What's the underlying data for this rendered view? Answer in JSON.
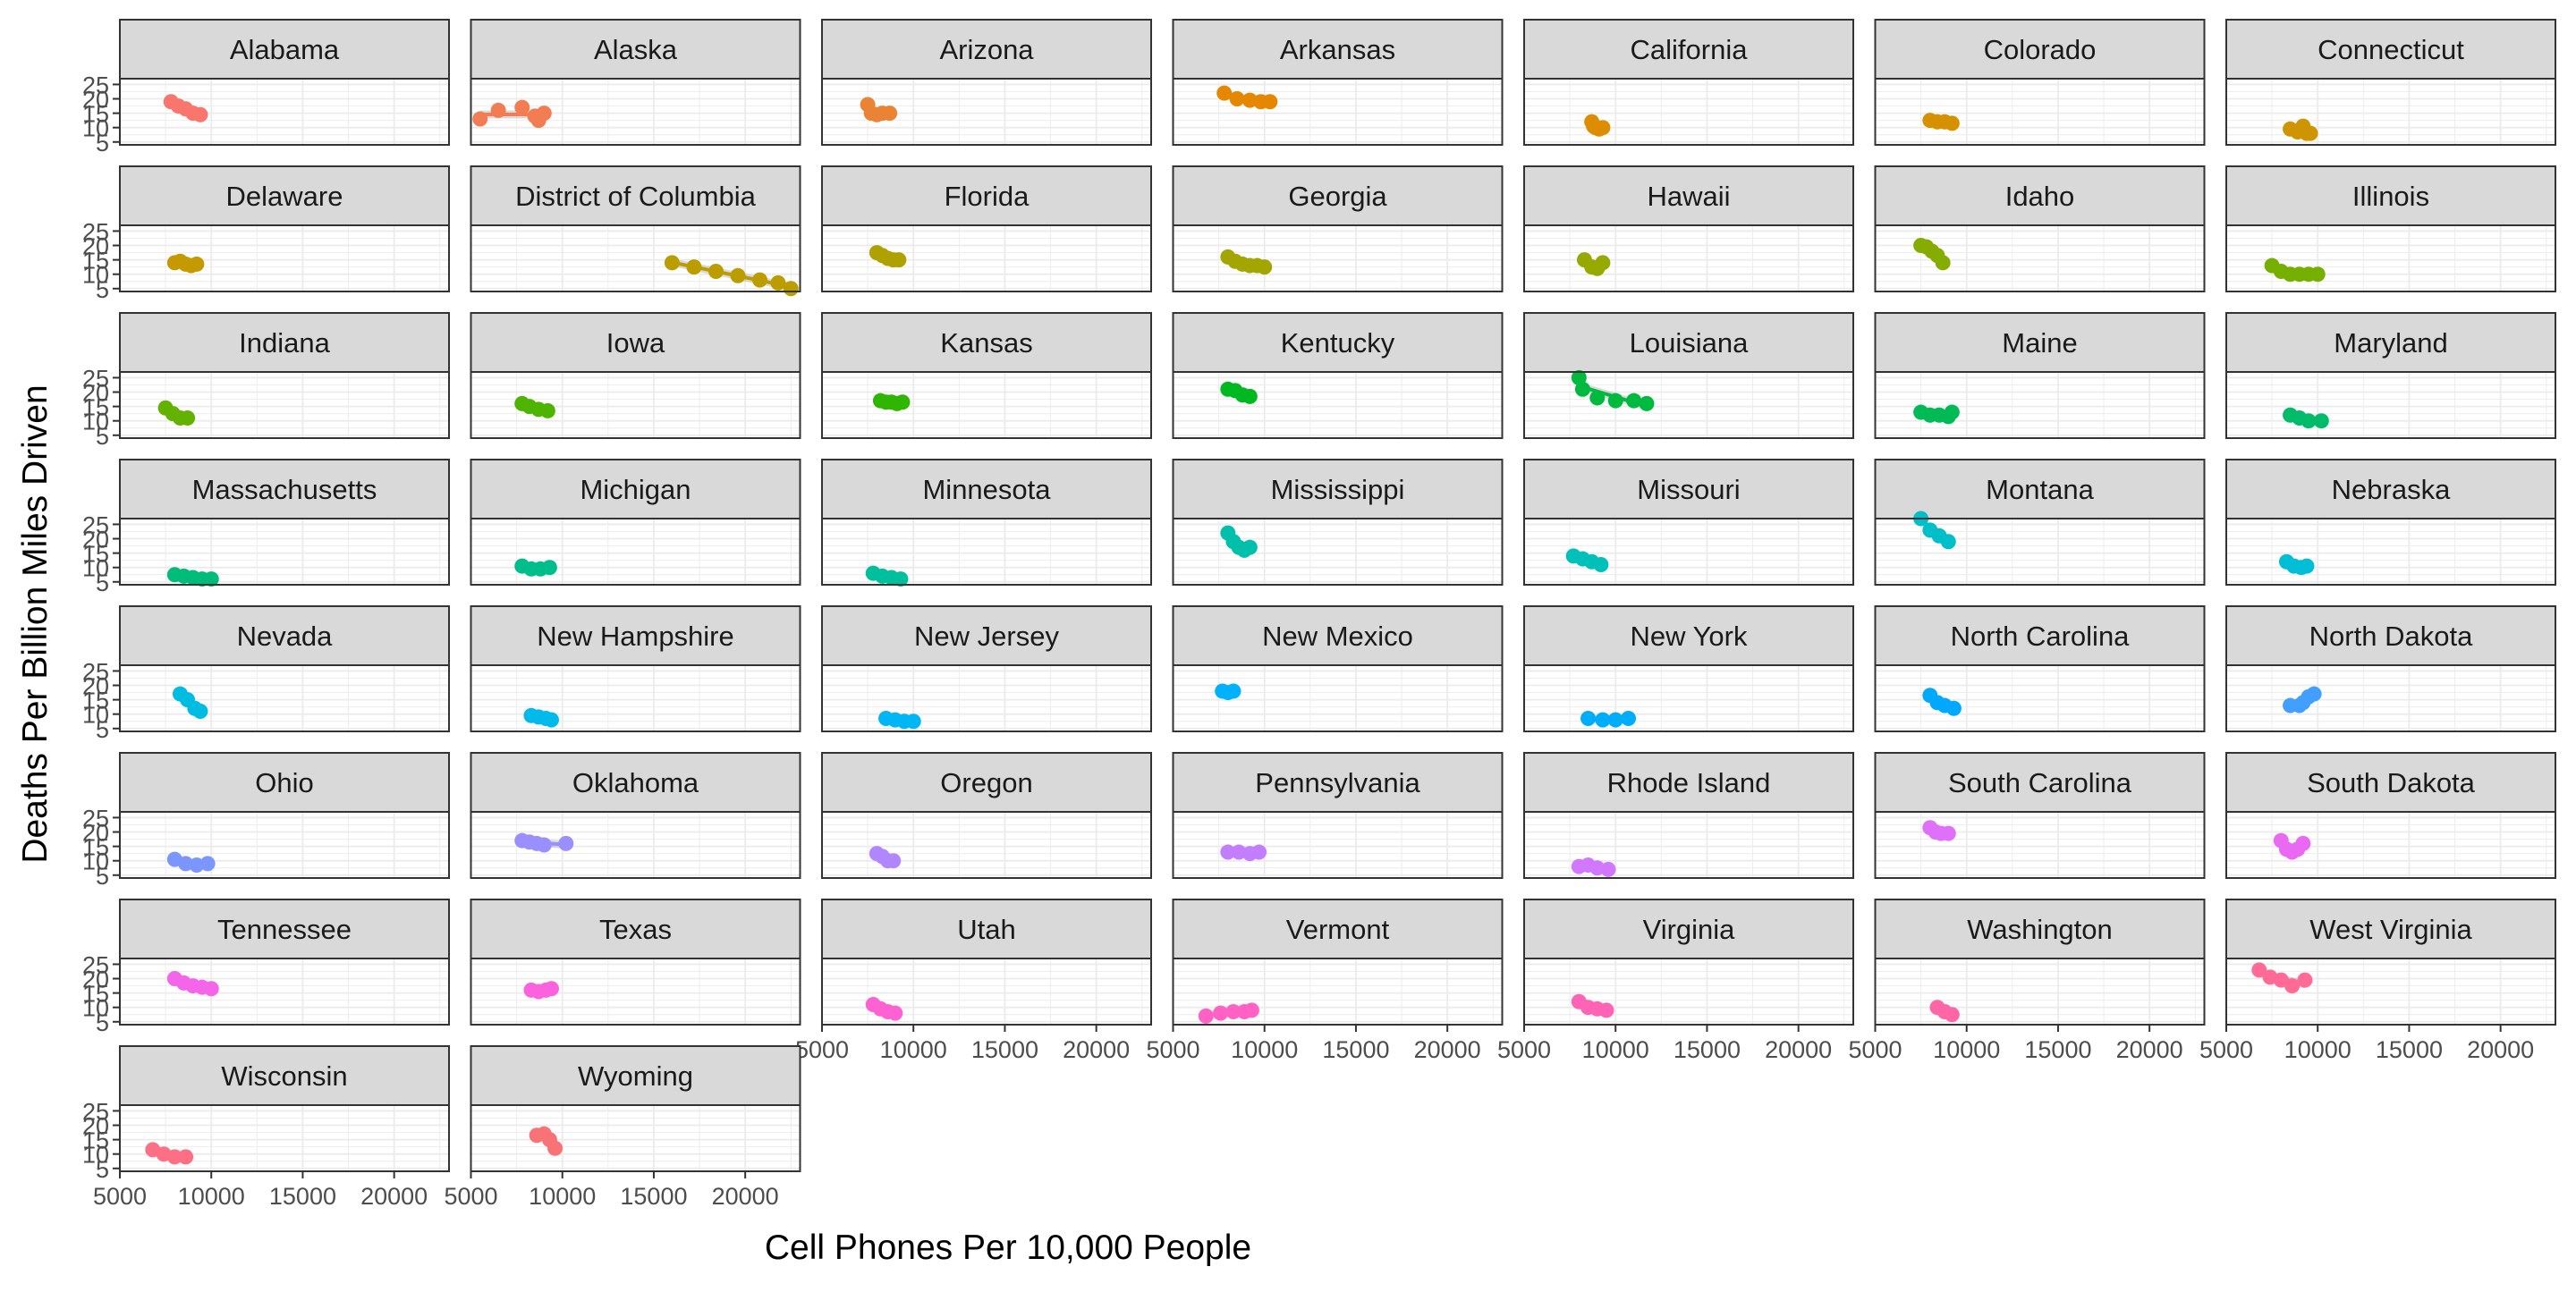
{
  "chart_data": {
    "type": "scatter",
    "xlabel": "Cell Phones Per 10,000 People",
    "ylabel": "Deaths Per Billion Miles Driven",
    "xlim": [
      5000,
      23000
    ],
    "ylim": [
      4,
      27
    ],
    "x_ticks": [
      5000,
      10000,
      15000,
      20000
    ],
    "y_ticks": [
      5,
      10,
      15,
      20,
      25
    ],
    "x_tick_labels": [
      "5000",
      "10000",
      "15000",
      "20000"
    ],
    "y_tick_labels": [
      "5",
      "10",
      "15",
      "20",
      "25"
    ],
    "grid": true,
    "trend_line": true,
    "legend": "none",
    "facet_columns": 7,
    "panels": [
      {
        "state": "Alabama",
        "color": "#F8766D",
        "x": [
          7800,
          8200,
          8600,
          9000,
          9400
        ],
        "y": [
          19,
          17.5,
          16.5,
          15,
          14.5
        ]
      },
      {
        "state": "Alaska",
        "color": "#F27D52",
        "x": [
          5500,
          6500,
          7800,
          8500,
          8700,
          9000
        ],
        "y": [
          13,
          16,
          17,
          14,
          12.5,
          15
        ]
      },
      {
        "state": "Arizona",
        "color": "#EB8335",
        "x": [
          7500,
          7700,
          8000,
          8300,
          8700
        ],
        "y": [
          18,
          15,
          14.5,
          15,
          15
        ]
      },
      {
        "state": "Arkansas",
        "color": "#E58700",
        "x": [
          7800,
          8500,
          9200,
          9800,
          10300
        ],
        "y": [
          22,
          20,
          19.5,
          19,
          19
        ]
      },
      {
        "state": "California",
        "color": "#DE8C00",
        "x": [
          8700,
          8800,
          8900,
          9100,
          9300
        ],
        "y": [
          12,
          10.5,
          10,
          9.5,
          10
        ]
      },
      {
        "state": "Colorado",
        "color": "#D69100",
        "x": [
          8000,
          8400,
          8800,
          9200
        ],
        "y": [
          12.5,
          12,
          12,
          11.5
        ]
      },
      {
        "state": "Connecticut",
        "color": "#CE9500",
        "x": [
          8500,
          8900,
          9200,
          9400,
          9600
        ],
        "y": [
          9.5,
          8.5,
          10.5,
          8,
          8
        ]
      },
      {
        "state": "Delaware",
        "color": "#C49A00",
        "x": [
          8000,
          8300,
          8600,
          8900,
          9200
        ],
        "y": [
          14,
          14.5,
          13.5,
          13,
          13.5
        ]
      },
      {
        "state": "District of Columbia",
        "color": "#BB9D00",
        "x": [
          16000,
          17200,
          18400,
          19600,
          20800,
          21800,
          22500
        ],
        "y": [
          14,
          12.5,
          11,
          9.5,
          8,
          7,
          5
        ]
      },
      {
        "state": "Florida",
        "color": "#AFA100",
        "x": [
          8000,
          8300,
          8600,
          8900,
          9200
        ],
        "y": [
          17.5,
          16.5,
          15.5,
          15,
          15
        ]
      },
      {
        "state": "Georgia",
        "color": "#A3A500",
        "x": [
          8000,
          8400,
          8800,
          9200,
          9600,
          10000
        ],
        "y": [
          16,
          14.5,
          13.5,
          13,
          13,
          12.5
        ]
      },
      {
        "state": "Hawaii",
        "color": "#96A900",
        "x": [
          8300,
          8700,
          9000,
          9300
        ],
        "y": [
          15,
          12.5,
          12,
          14
        ]
      },
      {
        "state": "Idaho",
        "color": "#87AC00",
        "x": [
          7500,
          7800,
          8100,
          8400,
          8700
        ],
        "y": [
          20,
          19.5,
          18,
          16.5,
          14
        ]
      },
      {
        "state": "Illinois",
        "color": "#76AF00",
        "x": [
          7500,
          8000,
          8500,
          9000,
          9500,
          10000
        ],
        "y": [
          13,
          11,
          10,
          10,
          10,
          10
        ]
      },
      {
        "state": "Indiana",
        "color": "#64B200",
        "x": [
          7500,
          7900,
          8300,
          8700
        ],
        "y": [
          14.5,
          12.5,
          11,
          11
        ]
      },
      {
        "state": "Iowa",
        "color": "#4DB400",
        "x": [
          7800,
          8200,
          8700,
          9200
        ],
        "y": [
          16,
          15,
          14,
          13.5
        ]
      },
      {
        "state": "Kansas",
        "color": "#2EB600",
        "x": [
          8200,
          8500,
          8800,
          9100,
          9400
        ],
        "y": [
          17,
          16.5,
          16.5,
          16,
          16.5
        ]
      },
      {
        "state": "Kentucky",
        "color": "#00B81F",
        "x": [
          8000,
          8400,
          8800,
          9200
        ],
        "y": [
          21,
          20.5,
          19,
          18.5
        ]
      },
      {
        "state": "Louisiana",
        "color": "#00B93F",
        "x": [
          8000,
          8200,
          9000,
          10000,
          11000,
          11700
        ],
        "y": [
          25,
          21,
          18,
          17,
          17,
          16
        ]
      },
      {
        "state": "Maine",
        "color": "#00BA55",
        "x": [
          7500,
          8000,
          8500,
          9000,
          9200
        ],
        "y": [
          13,
          12,
          12,
          11.5,
          13
        ]
      },
      {
        "state": "Maryland",
        "color": "#00BB69",
        "x": [
          8500,
          9000,
          9500,
          10200
        ],
        "y": [
          12,
          11,
          10,
          10
        ]
      },
      {
        "state": "Massachusetts",
        "color": "#00BC7B",
        "x": [
          8000,
          8500,
          9000,
          9500,
          10000
        ],
        "y": [
          7.5,
          7,
          6.5,
          6,
          6
        ]
      },
      {
        "state": "Michigan",
        "color": "#00BD8C",
        "x": [
          7800,
          8300,
          8800,
          9300
        ],
        "y": [
          10.5,
          9.5,
          9.5,
          10
        ]
      },
      {
        "state": "Minnesota",
        "color": "#00BF9C",
        "x": [
          7800,
          8300,
          8800,
          9300
        ],
        "y": [
          8,
          7,
          6.5,
          6
        ]
      },
      {
        "state": "Mississippi",
        "color": "#00BFAB",
        "x": [
          8000,
          8300,
          8600,
          8900,
          9200
        ],
        "y": [
          22,
          19,
          17,
          16,
          17
        ]
      },
      {
        "state": "Missouri",
        "color": "#00C0BA",
        "x": [
          7700,
          8200,
          8700,
          9200
        ],
        "y": [
          14,
          13,
          12,
          11
        ]
      },
      {
        "state": "Montana",
        "color": "#00BFC8",
        "x": [
          7500,
          8000,
          8500,
          9000
        ],
        "y": [
          27,
          23,
          21,
          19
        ]
      },
      {
        "state": "Nebraska",
        "color": "#00BED5",
        "x": [
          8300,
          8700,
          9100,
          9400
        ],
        "y": [
          12,
          10.5,
          10,
          10.5
        ]
      },
      {
        "state": "Nevada",
        "color": "#00BCE1",
        "x": [
          8300,
          8700,
          9100,
          9400
        ],
        "y": [
          17,
          15,
          12,
          11
        ]
      },
      {
        "state": "New Hampshire",
        "color": "#00BAEB",
        "x": [
          8300,
          8700,
          9100,
          9400
        ],
        "y": [
          9.5,
          9,
          8.5,
          8
        ]
      },
      {
        "state": "New Jersey",
        "color": "#00B6F5",
        "x": [
          8500,
          9000,
          9500,
          10000
        ],
        "y": [
          8.5,
          8,
          7.5,
          7.5
        ]
      },
      {
        "state": "New Mexico",
        "color": "#00B2FD",
        "x": [
          7700,
          8000,
          8300
        ],
        "y": [
          18,
          17.5,
          18
        ]
      },
      {
        "state": "New York",
        "color": "#00ADFA",
        "x": [
          8500,
          9300,
          10000,
          10700
        ],
        "y": [
          8.5,
          8,
          8,
          8.5
        ]
      },
      {
        "state": "North Carolina",
        "color": "#00A8FF",
        "x": [
          8000,
          8400,
          8800,
          9300
        ],
        "y": [
          16.5,
          14,
          13,
          12
        ]
      },
      {
        "state": "North Dakota",
        "color": "#41A0FF",
        "x": [
          8500,
          9000,
          9200,
          9500,
          9800
        ],
        "y": [
          13,
          13,
          14,
          16,
          17
        ]
      },
      {
        "state": "Ohio",
        "color": "#7B96FF",
        "x": [
          8000,
          8600,
          9200,
          9800
        ],
        "y": [
          10.5,
          9,
          8.5,
          9
        ]
      },
      {
        "state": "Oklahoma",
        "color": "#9B8EFF",
        "x": [
          7800,
          8200,
          8600,
          9000,
          10200
        ],
        "y": [
          17,
          16.5,
          16,
          15.5,
          16
        ]
      },
      {
        "state": "Oregon",
        "color": "#B186FF",
        "x": [
          8000,
          8300,
          8600,
          8900
        ],
        "y": [
          12.5,
          11.5,
          10,
          10
        ]
      },
      {
        "state": "Pennsylvania",
        "color": "#C37EFF",
        "x": [
          8000,
          8600,
          9200,
          9700
        ],
        "y": [
          13,
          13,
          12.5,
          13
        ]
      },
      {
        "state": "Rhode Island",
        "color": "#D277FF",
        "x": [
          8000,
          8500,
          9000,
          9600
        ],
        "y": [
          8,
          8.5,
          7.5,
          7
        ]
      },
      {
        "state": "South Carolina",
        "color": "#DF70FA",
        "x": [
          8000,
          8300,
          8600,
          9000
        ],
        "y": [
          21.5,
          20,
          19.5,
          19.5
        ]
      },
      {
        "state": "South Dakota",
        "color": "#EA69F2",
        "x": [
          8000,
          8300,
          8600,
          8900,
          9200
        ],
        "y": [
          17,
          14,
          13,
          14,
          16
        ]
      },
      {
        "state": "Tennessee",
        "color": "#F365E9",
        "x": [
          8000,
          8500,
          9000,
          9500,
          10000
        ],
        "y": [
          20,
          18.5,
          17.5,
          17,
          16.5
        ]
      },
      {
        "state": "Texas",
        "color": "#FA62DE",
        "x": [
          8300,
          8700,
          9100,
          9400
        ],
        "y": [
          16,
          15.5,
          16,
          16.5
        ]
      },
      {
        "state": "Utah",
        "color": "#FE61D2",
        "x": [
          7800,
          8200,
          8600,
          9000
        ],
        "y": [
          11,
          9.5,
          8.5,
          8
        ]
      },
      {
        "state": "Vermont",
        "color": "#FF61C4",
        "x": [
          6800,
          7600,
          8300,
          8900,
          9300
        ],
        "y": [
          7,
          8,
          8.5,
          8.5,
          9
        ]
      },
      {
        "state": "Virginia",
        "color": "#FF63B6",
        "x": [
          8000,
          8500,
          9000,
          9500
        ],
        "y": [
          12,
          10,
          9.5,
          9
        ]
      },
      {
        "state": "Washington",
        "color": "#FF66A6",
        "x": [
          8400,
          8800,
          9200
        ],
        "y": [
          10,
          8.5,
          7.5
        ]
      },
      {
        "state": "West Virginia",
        "color": "#FF6A96",
        "x": [
          6800,
          7400,
          8000,
          8600,
          9300
        ],
        "y": [
          23,
          20.5,
          19.5,
          17.5,
          19.5
        ]
      },
      {
        "state": "Wisconsin",
        "color": "#FC6F85",
        "x": [
          6800,
          7400,
          8000,
          8600
        ],
        "y": [
          11.5,
          10,
          9,
          9
        ]
      },
      {
        "state": "Wyoming",
        "color": "#F87376",
        "x": [
          8600,
          9000,
          9300,
          9600
        ],
        "y": [
          16.5,
          17,
          15,
          12
        ]
      }
    ]
  }
}
